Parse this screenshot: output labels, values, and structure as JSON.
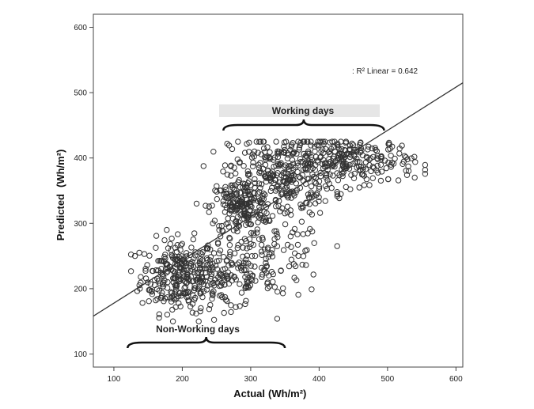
{
  "chart_data": {
    "type": "scatter",
    "xlabel": "Actual",
    "xlabel_unit": "(Wh/m²)",
    "ylabel": "Predicted",
    "ylabel_unit": "(Wh/m²)",
    "xlim": [
      70,
      610
    ],
    "ylim": [
      80,
      620
    ],
    "x_ticks": [
      100,
      200,
      300,
      400,
      500,
      600
    ],
    "y_ticks": [
      100,
      200,
      300,
      400,
      500,
      600
    ],
    "grid": false,
    "marker": "open-circle",
    "marker_color": "#333333",
    "fit_line": {
      "label": ": R² Linear = 0.642",
      "x": [
        70,
        610
      ],
      "y": [
        158,
        515
      ]
    },
    "annotations": [
      {
        "text": "Working days",
        "x": [
          260,
          495
        ],
        "y": 365
      },
      {
        "text": "Non-Working days",
        "x": [
          120,
          350
        ],
        "y": 108
      }
    ],
    "clusters": [
      {
        "name": "non-working-main",
        "center": [
          195,
          220
        ],
        "spread": [
          28,
          28
        ],
        "n": 260
      },
      {
        "name": "non-working-tail",
        "center": [
          260,
          218
        ],
        "spread": [
          35,
          25
        ],
        "n": 130
      },
      {
        "name": "non-working-upper",
        "center": [
          330,
          245
        ],
        "spread": [
          40,
          30
        ],
        "n": 110
      },
      {
        "name": "working-left",
        "center": [
          285,
          325
        ],
        "spread": [
          22,
          22
        ],
        "n": 190
      },
      {
        "name": "working-mid",
        "center": [
          345,
          375
        ],
        "spread": [
          38,
          32
        ],
        "n": 300
      },
      {
        "name": "working-right",
        "center": [
          450,
          395
        ],
        "spread": [
          45,
          18
        ],
        "n": 230
      }
    ]
  }
}
